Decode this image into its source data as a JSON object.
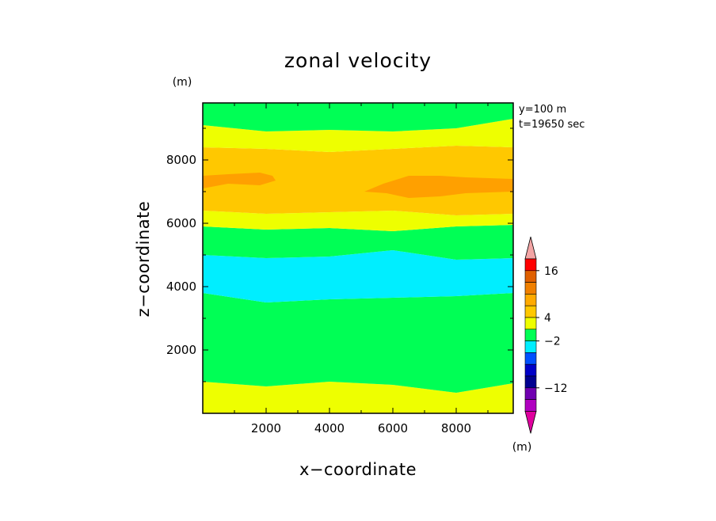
{
  "chart_data": {
    "type": "heatmap",
    "title": "zonal velocity",
    "xlabel": "x−coordinate",
    "ylabel": "z−coordinate",
    "xunit": "(m)",
    "yunit": "(m)",
    "annotations": [
      "y=100 m",
      "t=19650 sec"
    ],
    "xlim": [
      0,
      9800
    ],
    "ylim": [
      0,
      9800
    ],
    "xticks": [
      2000,
      4000,
      6000,
      8000
    ],
    "yticks": [
      2000,
      4000,
      6000,
      8000
    ],
    "xtick_labels": [
      "2000",
      "4000",
      "6000",
      "8000"
    ],
    "ytick_labels": [
      "2000",
      "4000",
      "6000",
      "8000"
    ],
    "colorbar": {
      "labels": [
        "16",
        "4",
        "−2",
        "−12"
      ],
      "colors": [
        "#ff0000",
        "#e06000",
        "#f08000",
        "#ffaa00",
        "#ffc800",
        "#eeff00",
        "#00ff55",
        "#00eeff",
        "#0050ff",
        "#0000c8",
        "#000090",
        "#7000b0",
        "#b000c0"
      ],
      "over_color": "#f3a5a5",
      "under_color": "#e0009e"
    },
    "fill_colors": {
      "yellow": "#eeff00",
      "green": "#00ff55",
      "cyan": "#00eeff",
      "light_orange": "#ffc800",
      "dark_orange": "#ffa000"
    },
    "bands": [
      {
        "level": "0 to 2",
        "color": "yellow",
        "z_bottom": 0,
        "z_top": [
          1000,
          850,
          1000,
          900,
          650,
          950
        ]
      },
      {
        "level": "-2 to 0",
        "color": "green",
        "z_bottom": [
          1000,
          850,
          1000,
          900,
          650,
          950
        ],
        "z_top": [
          3800,
          3500,
          3600,
          3650,
          3700,
          3800
        ]
      },
      {
        "level": "-4 to -2",
        "color": "cyan",
        "z_bottom": [
          3800,
          3500,
          3600,
          3650,
          3700,
          3800
        ],
        "z_top": [
          5000,
          4900,
          4950,
          5150,
          4850,
          4900
        ]
      },
      {
        "level": "-2 to 0",
        "color": "green",
        "z_bottom": [
          5000,
          4900,
          4950,
          5150,
          4850,
          4900
        ],
        "z_top": [
          5900,
          5800,
          5850,
          5750,
          5900,
          5950
        ]
      },
      {
        "level": "0 to 2",
        "color": "yellow",
        "z_bottom": [
          5900,
          5800,
          5850,
          5750,
          5900,
          5950
        ],
        "z_top": [
          6400,
          6300,
          6350,
          6400,
          6250,
          6300
        ]
      },
      {
        "level": "2 to 4",
        "color": "light_orange",
        "z_bottom": [
          6400,
          6300,
          6350,
          6400,
          6250,
          6300
        ],
        "z_top": [
          8400,
          8350,
          8250,
          8350,
          8450,
          8400
        ]
      },
      {
        "level": "0 to 2",
        "color": "yellow",
        "z_bottom": [
          8400,
          8350,
          8250,
          8350,
          8450,
          8400
        ],
        "z_top": [
          9100,
          8900,
          8950,
          8900,
          9000,
          9300
        ]
      },
      {
        "level": "-2 to 0",
        "color": "green",
        "z_bottom": [
          9100,
          8900,
          8950,
          8900,
          9000,
          9300
        ],
        "z_top": 9800
      }
    ],
    "band_x": [
      0,
      2000,
      4000,
      6000,
      8000,
      9800
    ],
    "blobs": [
      {
        "level": "4 to 8",
        "color": "dark_orange",
        "x": [
          0,
          800,
          1800,
          2200,
          2300,
          1800,
          800,
          0
        ],
        "z": [
          7500,
          7550,
          7600,
          7500,
          7350,
          7200,
          7250,
          7100
        ]
      },
      {
        "level": "4 to 8",
        "color": "dark_orange",
        "x": [
          5100,
          5700,
          6500,
          7500,
          8300,
          9800,
          9800,
          8300,
          7500,
          6500,
          5800,
          5100
        ],
        "z": [
          7000,
          7250,
          7500,
          7500,
          7450,
          7400,
          7000,
          6950,
          6850,
          6800,
          6950,
          7000
        ]
      }
    ]
  }
}
